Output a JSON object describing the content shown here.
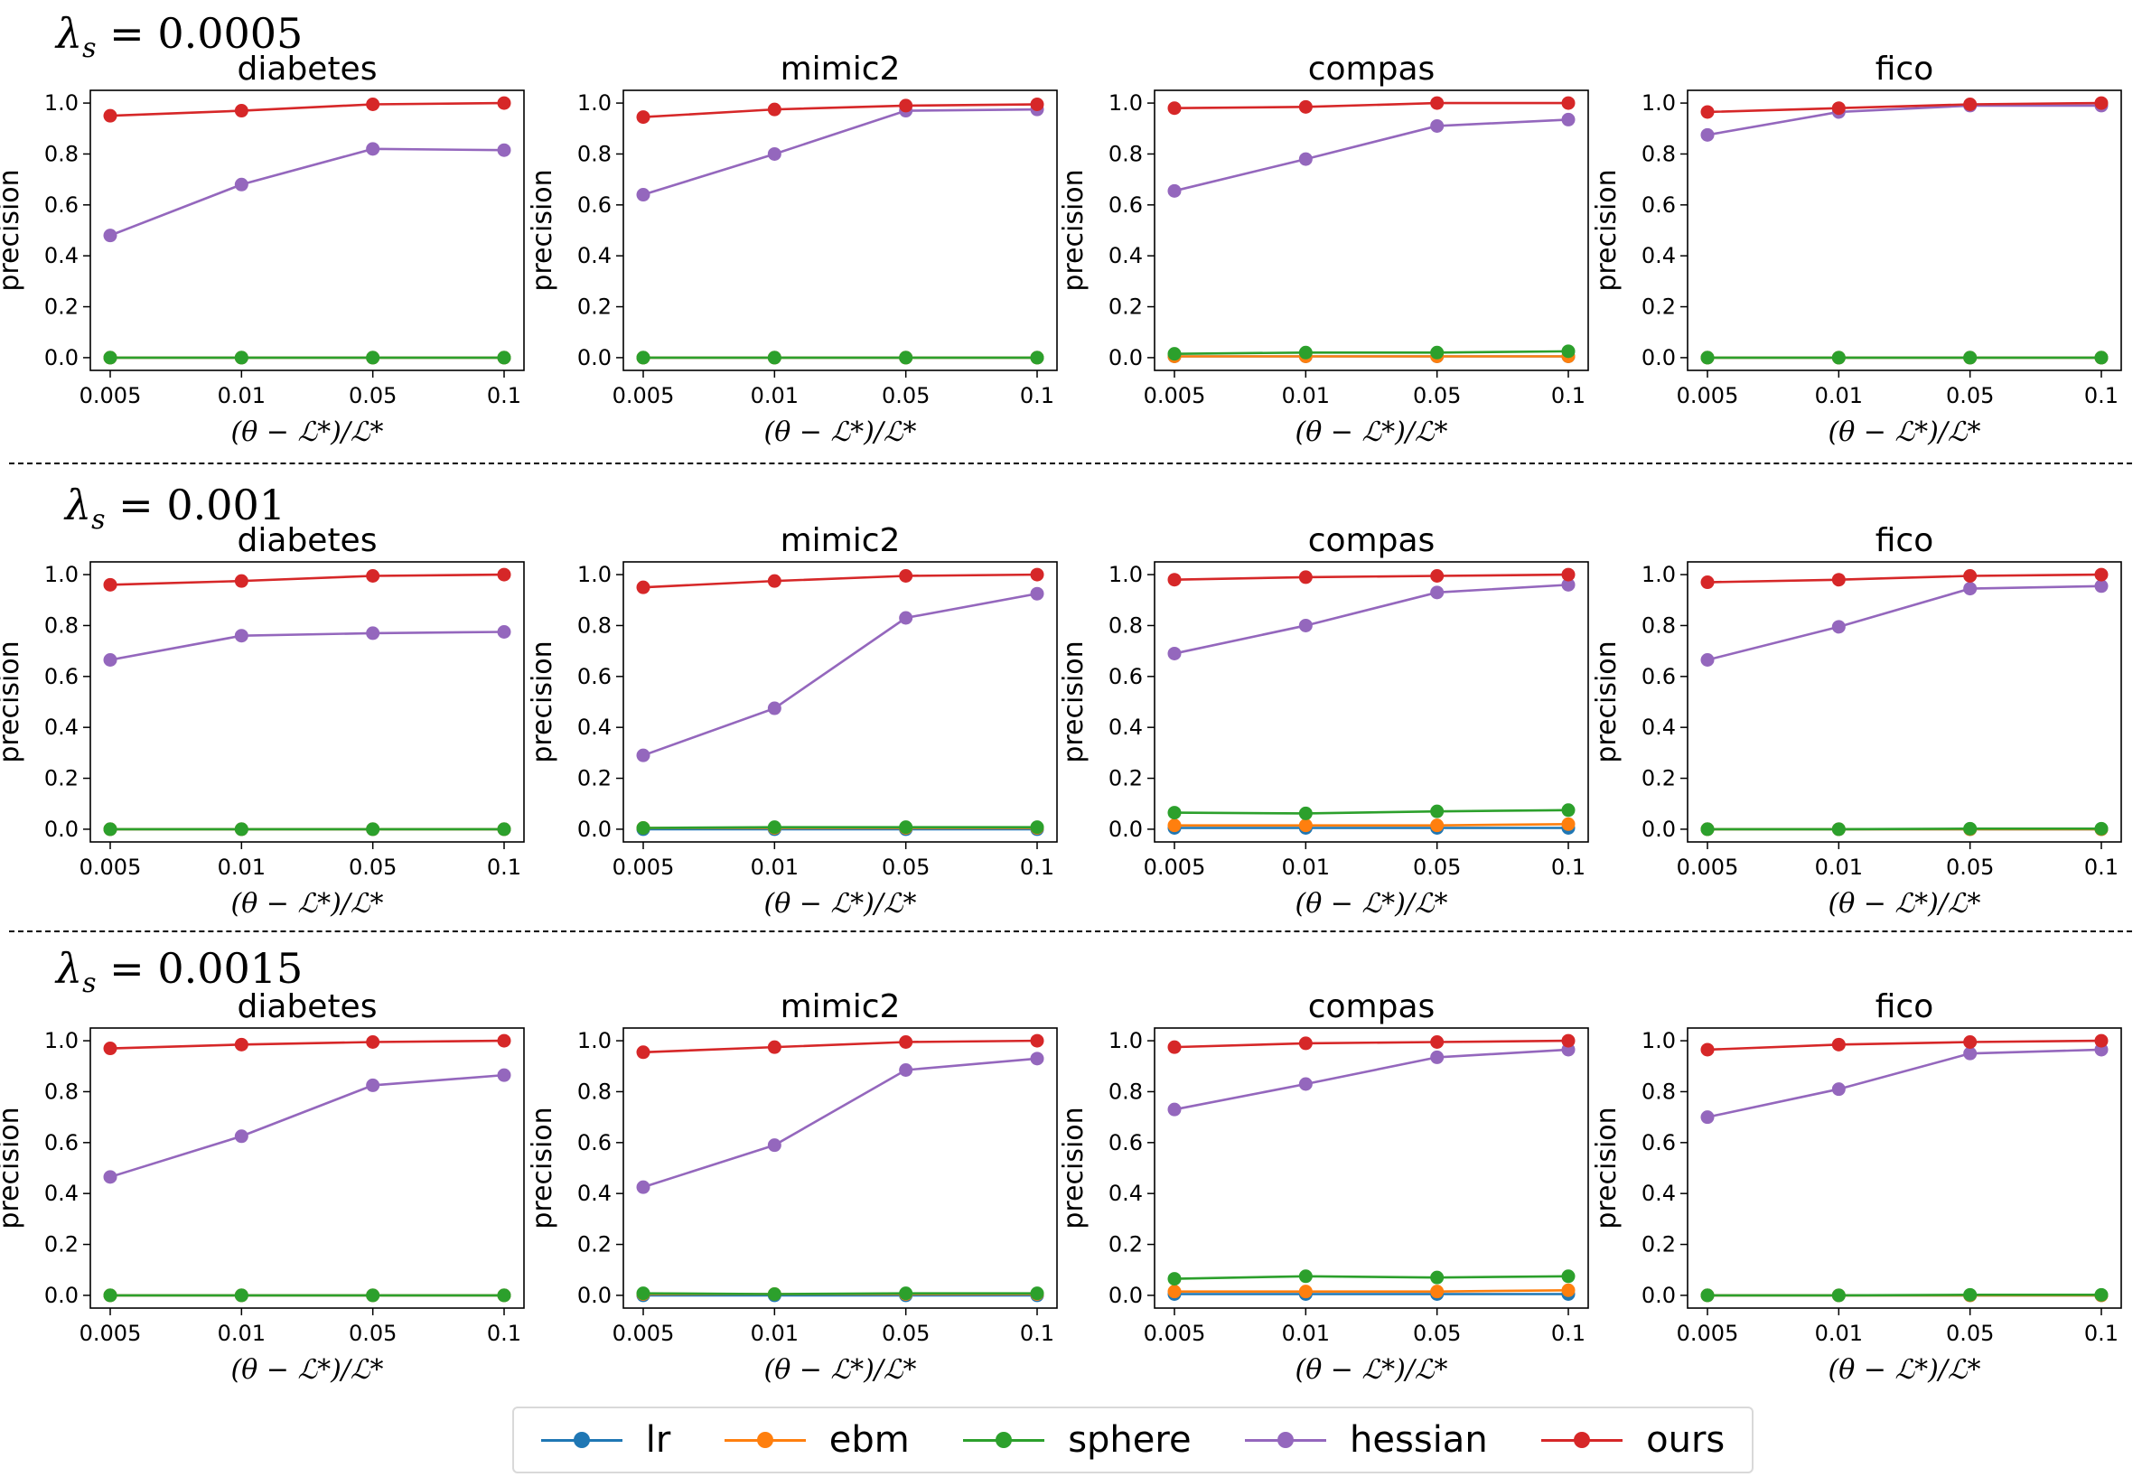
{
  "row_labels": [
    "0.0005",
    "0.001",
    "0.0015"
  ],
  "legend": [
    {
      "name": "lr",
      "color": "#1f77b4"
    },
    {
      "name": "ebm",
      "color": "#ff7f0e"
    },
    {
      "name": "sphere",
      "color": "#2ca02c"
    },
    {
      "name": "hessian",
      "color": "#9467bd"
    },
    {
      "name": "ours",
      "color": "#d62728"
    }
  ],
  "chart_data": [
    {
      "type": "line",
      "row": "0.0005",
      "title": "diabetes",
      "categories": [
        "0.005",
        "0.01",
        "0.05",
        "0.1"
      ],
      "xlabel": "(θ − ℒ*)/ℒ*",
      "ylabel": "precision",
      "ylim": [
        -0.05,
        1.05
      ],
      "yticks": [
        "0.0",
        "0.2",
        "0.4",
        "0.6",
        "0.8",
        "1.0"
      ],
      "grid": false,
      "series": [
        {
          "name": "lr",
          "values": [
            0,
            0,
            0,
            0
          ]
        },
        {
          "name": "ebm",
          "values": [
            0,
            0,
            0,
            0
          ]
        },
        {
          "name": "sphere",
          "values": [
            0,
            0,
            0,
            0
          ]
        },
        {
          "name": "hessian",
          "values": [
            0.48,
            0.68,
            0.82,
            0.815
          ]
        },
        {
          "name": "ours",
          "values": [
            0.95,
            0.97,
            0.995,
            1.0
          ]
        }
      ]
    },
    {
      "type": "line",
      "row": "0.0005",
      "title": "mimic2",
      "categories": [
        "0.005",
        "0.01",
        "0.05",
        "0.1"
      ],
      "xlabel": "(θ − ℒ*)/ℒ*",
      "ylabel": "precision",
      "ylim": [
        -0.05,
        1.05
      ],
      "yticks": [
        "0.0",
        "0.2",
        "0.4",
        "0.6",
        "0.8",
        "1.0"
      ],
      "grid": false,
      "series": [
        {
          "name": "lr",
          "values": [
            0,
            0,
            0,
            0
          ]
        },
        {
          "name": "ebm",
          "values": [
            0,
            0,
            0,
            0
          ]
        },
        {
          "name": "sphere",
          "values": [
            0,
            0,
            0,
            0
          ]
        },
        {
          "name": "hessian",
          "values": [
            0.64,
            0.8,
            0.97,
            0.975
          ]
        },
        {
          "name": "ours",
          "values": [
            0.945,
            0.975,
            0.99,
            0.995
          ]
        }
      ]
    },
    {
      "type": "line",
      "row": "0.0005",
      "title": "compas",
      "categories": [
        "0.005",
        "0.01",
        "0.05",
        "0.1"
      ],
      "xlabel": "(θ − ℒ*)/ℒ*",
      "ylabel": "precision",
      "ylim": [
        -0.05,
        1.05
      ],
      "yticks": [
        "0.0",
        "0.2",
        "0.4",
        "0.6",
        "0.8",
        "1.0"
      ],
      "grid": false,
      "series": [
        {
          "name": "lr",
          "values": [
            0.005,
            0.005,
            0.005,
            0.005
          ]
        },
        {
          "name": "ebm",
          "values": [
            0.005,
            0.005,
            0.005,
            0.005
          ]
        },
        {
          "name": "sphere",
          "values": [
            0.015,
            0.02,
            0.02,
            0.025
          ]
        },
        {
          "name": "hessian",
          "values": [
            0.655,
            0.78,
            0.91,
            0.935
          ]
        },
        {
          "name": "ours",
          "values": [
            0.98,
            0.985,
            1.0,
            1.0
          ]
        }
      ]
    },
    {
      "type": "line",
      "row": "0.0005",
      "title": "fico",
      "categories": [
        "0.005",
        "0.01",
        "0.05",
        "0.1"
      ],
      "xlabel": "(θ − ℒ*)/ℒ*",
      "ylabel": "precision",
      "ylim": [
        -0.05,
        1.05
      ],
      "yticks": [
        "0.0",
        "0.2",
        "0.4",
        "0.6",
        "0.8",
        "1.0"
      ],
      "grid": false,
      "series": [
        {
          "name": "lr",
          "values": [
            0,
            0,
            0,
            0
          ]
        },
        {
          "name": "ebm",
          "values": [
            0,
            0,
            0,
            0
          ]
        },
        {
          "name": "sphere",
          "values": [
            0,
            0,
            0,
            0
          ]
        },
        {
          "name": "hessian",
          "values": [
            0.875,
            0.965,
            0.99,
            0.99
          ]
        },
        {
          "name": "ours",
          "values": [
            0.965,
            0.98,
            0.995,
            1.0
          ]
        }
      ]
    },
    {
      "type": "line",
      "row": "0.001",
      "title": "diabetes",
      "categories": [
        "0.005",
        "0.01",
        "0.05",
        "0.1"
      ],
      "xlabel": "(θ − ℒ*)/ℒ*",
      "ylabel": "precision",
      "ylim": [
        -0.05,
        1.05
      ],
      "yticks": [
        "0.0",
        "0.2",
        "0.4",
        "0.6",
        "0.8",
        "1.0"
      ],
      "grid": false,
      "series": [
        {
          "name": "lr",
          "values": [
            0,
            0,
            0,
            0
          ]
        },
        {
          "name": "ebm",
          "values": [
            0,
            0,
            0,
            0
          ]
        },
        {
          "name": "sphere",
          "values": [
            0,
            0,
            0,
            0
          ]
        },
        {
          "name": "hessian",
          "values": [
            0.665,
            0.76,
            0.77,
            0.775
          ]
        },
        {
          "name": "ours",
          "values": [
            0.96,
            0.975,
            0.995,
            1.0
          ]
        }
      ]
    },
    {
      "type": "line",
      "row": "0.001",
      "title": "mimic2",
      "categories": [
        "0.005",
        "0.01",
        "0.05",
        "0.1"
      ],
      "xlabel": "(θ − ℒ*)/ℒ*",
      "ylabel": "precision",
      "ylim": [
        -0.05,
        1.05
      ],
      "yticks": [
        "0.0",
        "0.2",
        "0.4",
        "0.6",
        "0.8",
        "1.0"
      ],
      "grid": false,
      "series": [
        {
          "name": "lr",
          "values": [
            0,
            0,
            0,
            0
          ]
        },
        {
          "name": "ebm",
          "values": [
            0.005,
            0.005,
            0.005,
            0.005
          ]
        },
        {
          "name": "sphere",
          "values": [
            0.005,
            0.008,
            0.008,
            0.008
          ]
        },
        {
          "name": "hessian",
          "values": [
            0.29,
            0.475,
            0.83,
            0.925
          ]
        },
        {
          "name": "ours",
          "values": [
            0.95,
            0.975,
            0.995,
            1.0
          ]
        }
      ]
    },
    {
      "type": "line",
      "row": "0.001",
      "title": "compas",
      "categories": [
        "0.005",
        "0.01",
        "0.05",
        "0.1"
      ],
      "xlabel": "(θ − ℒ*)/ℒ*",
      "ylabel": "precision",
      "ylim": [
        -0.05,
        1.05
      ],
      "yticks": [
        "0.0",
        "0.2",
        "0.4",
        "0.6",
        "0.8",
        "1.0"
      ],
      "grid": false,
      "series": [
        {
          "name": "lr",
          "values": [
            0.005,
            0.005,
            0.005,
            0.005
          ]
        },
        {
          "name": "ebm",
          "values": [
            0.015,
            0.015,
            0.015,
            0.02
          ]
        },
        {
          "name": "sphere",
          "values": [
            0.065,
            0.062,
            0.07,
            0.075
          ]
        },
        {
          "name": "hessian",
          "values": [
            0.69,
            0.8,
            0.93,
            0.96
          ]
        },
        {
          "name": "ours",
          "values": [
            0.98,
            0.99,
            0.995,
            1.0
          ]
        }
      ]
    },
    {
      "type": "line",
      "row": "0.001",
      "title": "fico",
      "categories": [
        "0.005",
        "0.01",
        "0.05",
        "0.1"
      ],
      "xlabel": "(θ − ℒ*)/ℒ*",
      "ylabel": "precision",
      "ylim": [
        -0.05,
        1.05
      ],
      "yticks": [
        "0.0",
        "0.2",
        "0.4",
        "0.6",
        "0.8",
        "1.0"
      ],
      "grid": false,
      "series": [
        {
          "name": "lr",
          "values": [
            0,
            0,
            0,
            0
          ]
        },
        {
          "name": "ebm",
          "values": [
            0,
            0,
            0,
            0
          ]
        },
        {
          "name": "sphere",
          "values": [
            0,
            0,
            0.002,
            0.002
          ]
        },
        {
          "name": "hessian",
          "values": [
            0.665,
            0.795,
            0.945,
            0.955
          ]
        },
        {
          "name": "ours",
          "values": [
            0.97,
            0.98,
            0.995,
            1.0
          ]
        }
      ]
    },
    {
      "type": "line",
      "row": "0.0015",
      "title": "diabetes",
      "categories": [
        "0.005",
        "0.01",
        "0.05",
        "0.1"
      ],
      "xlabel": "(θ − ℒ*)/ℒ*",
      "ylabel": "precision",
      "ylim": [
        -0.05,
        1.05
      ],
      "yticks": [
        "0.0",
        "0.2",
        "0.4",
        "0.6",
        "0.8",
        "1.0"
      ],
      "grid": false,
      "series": [
        {
          "name": "lr",
          "values": [
            0,
            0,
            0,
            0
          ]
        },
        {
          "name": "ebm",
          "values": [
            0,
            0,
            0,
            0
          ]
        },
        {
          "name": "sphere",
          "values": [
            0,
            0,
            0,
            0
          ]
        },
        {
          "name": "hessian",
          "values": [
            0.465,
            0.625,
            0.825,
            0.865
          ]
        },
        {
          "name": "ours",
          "values": [
            0.97,
            0.985,
            0.995,
            1.0
          ]
        }
      ]
    },
    {
      "type": "line",
      "row": "0.0015",
      "title": "mimic2",
      "categories": [
        "0.005",
        "0.01",
        "0.05",
        "0.1"
      ],
      "xlabel": "(θ − ℒ*)/ℒ*",
      "ylabel": "precision",
      "ylim": [
        -0.05,
        1.05
      ],
      "yticks": [
        "0.0",
        "0.2",
        "0.4",
        "0.6",
        "0.8",
        "1.0"
      ],
      "grid": false,
      "series": [
        {
          "name": "lr",
          "values": [
            0,
            0,
            0,
            0
          ]
        },
        {
          "name": "ebm",
          "values": [
            0.005,
            0.005,
            0.005,
            0.005
          ]
        },
        {
          "name": "sphere",
          "values": [
            0.008,
            0.005,
            0.008,
            0.008
          ]
        },
        {
          "name": "hessian",
          "values": [
            0.425,
            0.59,
            0.885,
            0.93
          ]
        },
        {
          "name": "ours",
          "values": [
            0.955,
            0.975,
            0.995,
            1.0
          ]
        }
      ]
    },
    {
      "type": "line",
      "row": "0.0015",
      "title": "compas",
      "categories": [
        "0.005",
        "0.01",
        "0.05",
        "0.1"
      ],
      "xlabel": "(θ − ℒ*)/ℒ*",
      "ylabel": "precision",
      "ylim": [
        -0.05,
        1.05
      ],
      "yticks": [
        "0.0",
        "0.2",
        "0.4",
        "0.6",
        "0.8",
        "1.0"
      ],
      "grid": false,
      "series": [
        {
          "name": "lr",
          "values": [
            0.005,
            0.005,
            0.005,
            0.005
          ]
        },
        {
          "name": "ebm",
          "values": [
            0.015,
            0.015,
            0.015,
            0.02
          ]
        },
        {
          "name": "sphere",
          "values": [
            0.065,
            0.075,
            0.07,
            0.075
          ]
        },
        {
          "name": "hessian",
          "values": [
            0.73,
            0.83,
            0.935,
            0.965
          ]
        },
        {
          "name": "ours",
          "values": [
            0.975,
            0.99,
            0.995,
            1.0
          ]
        }
      ]
    },
    {
      "type": "line",
      "row": "0.0015",
      "title": "fico",
      "categories": [
        "0.005",
        "0.01",
        "0.05",
        "0.1"
      ],
      "xlabel": "(θ − ℒ*)/ℒ*",
      "ylabel": "precision",
      "ylim": [
        -0.05,
        1.05
      ],
      "yticks": [
        "0.0",
        "0.2",
        "0.4",
        "0.6",
        "0.8",
        "1.0"
      ],
      "grid": false,
      "series": [
        {
          "name": "lr",
          "values": [
            0,
            0,
            0,
            0
          ]
        },
        {
          "name": "ebm",
          "values": [
            0,
            0,
            0,
            0
          ]
        },
        {
          "name": "sphere",
          "values": [
            0,
            0,
            0.002,
            0.002
          ]
        },
        {
          "name": "hessian",
          "values": [
            0.7,
            0.81,
            0.95,
            0.965
          ]
        },
        {
          "name": "ours",
          "values": [
            0.965,
            0.985,
            0.995,
            1.0
          ]
        }
      ]
    }
  ]
}
